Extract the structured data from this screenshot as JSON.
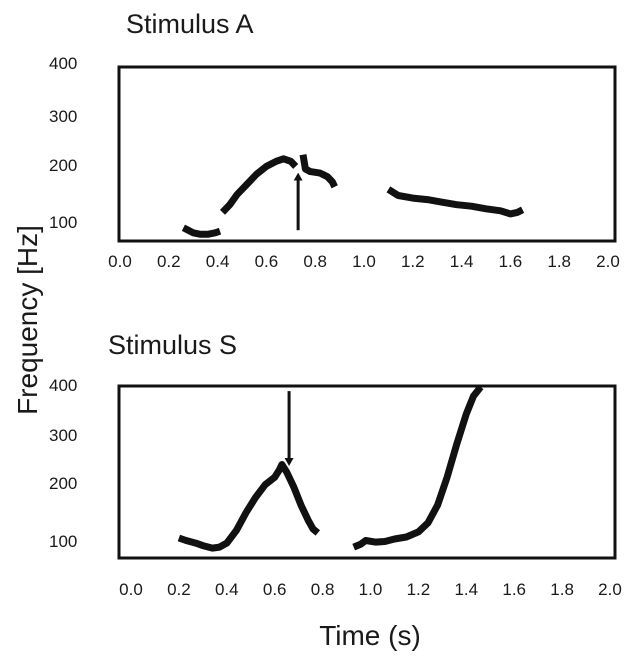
{
  "figure": {
    "ylabel": "Frequency [Hz]",
    "xlabel": "Time (s)"
  },
  "chart_data": [
    {
      "type": "line",
      "title": "Stimulus A",
      "xlabel": "Time (s)",
      "ylabel": "Frequency [Hz]",
      "xlim": [
        0.0,
        2.0
      ],
      "ylim": [
        55,
        400
      ],
      "xticks": [
        "0.0",
        "0.2",
        "0.4",
        "0.6",
        "0.8",
        "1.0",
        "1.2",
        "1.4",
        "1.6",
        "1.8",
        "2.0"
      ],
      "yticks": [
        "400",
        "300",
        "200",
        "100"
      ],
      "ytick_values": [
        400,
        300,
        200,
        100
      ],
      "grid": false,
      "series": [
        {
          "segments": [
            [
              [
                0.26,
                85
              ],
              [
                0.28,
                80
              ],
              [
                0.3,
                75
              ],
              [
                0.33,
                72
              ],
              [
                0.36,
                72
              ],
              [
                0.39,
                75
              ],
              [
                0.41,
                78
              ]
            ],
            [
              [
                0.42,
                115
              ],
              [
                0.45,
                130
              ],
              [
                0.48,
                150
              ],
              [
                0.52,
                170
              ],
              [
                0.56,
                190
              ],
              [
                0.6,
                205
              ],
              [
                0.64,
                215
              ],
              [
                0.67,
                220
              ],
              [
                0.7,
                215
              ],
              [
                0.72,
                205
              ]
            ],
            [
              [
                0.75,
                228
              ],
              [
                0.76,
                200
              ],
              [
                0.78,
                195
              ],
              [
                0.82,
                192
              ],
              [
                0.85,
                185
              ],
              [
                0.87,
                175
              ],
              [
                0.88,
                165
              ]
            ],
            [
              [
                1.1,
                160
              ],
              [
                1.14,
                148
              ],
              [
                1.2,
                143
              ],
              [
                1.26,
                140
              ],
              [
                1.32,
                135
              ],
              [
                1.38,
                130
              ],
              [
                1.44,
                127
              ],
              [
                1.5,
                122
              ],
              [
                1.56,
                118
              ],
              [
                1.6,
                112
              ],
              [
                1.63,
                115
              ],
              [
                1.65,
                120
              ]
            ]
          ]
        }
      ],
      "annotations": [
        {
          "type": "arrow",
          "direction": "up",
          "x": 0.73,
          "y_from": 80,
          "y_to": 185
        }
      ]
    },
    {
      "type": "line",
      "title": "Stimulus S",
      "xlabel": "Time (s)",
      "ylabel": "Frequency [Hz]",
      "xlim": [
        0.0,
        2.0
      ],
      "ylim": [
        60,
        400
      ],
      "xticks": [
        "0.0",
        "0.2",
        "0.4",
        "0.6",
        "0.8",
        "1.0",
        "1.2",
        "1.4",
        "1.6",
        "1.8",
        "2.0"
      ],
      "yticks": [
        "400",
        "300",
        "200",
        "100"
      ],
      "ytick_values": [
        400,
        300,
        200,
        100
      ],
      "grid": false,
      "series": [
        {
          "segments": [
            [
              [
                0.2,
                100
              ],
              [
                0.23,
                95
              ],
              [
                0.27,
                90
              ],
              [
                0.3,
                85
              ],
              [
                0.34,
                80
              ],
              [
                0.37,
                82
              ],
              [
                0.4,
                90
              ],
              [
                0.44,
                115
              ],
              [
                0.48,
                150
              ],
              [
                0.52,
                180
              ],
              [
                0.56,
                205
              ],
              [
                0.6,
                220
              ],
              [
                0.62,
                235
              ],
              [
                0.63,
                245
              ],
              [
                0.65,
                230
              ],
              [
                0.68,
                200
              ],
              [
                0.71,
                165
              ],
              [
                0.74,
                135
              ],
              [
                0.76,
                118
              ],
              [
                0.78,
                110
              ]
            ],
            [
              [
                0.93,
                82
              ],
              [
                0.96,
                88
              ],
              [
                0.98,
                95
              ],
              [
                1.02,
                92
              ],
              [
                1.06,
                93
              ],
              [
                1.1,
                98
              ],
              [
                1.15,
                102
              ],
              [
                1.2,
                112
              ],
              [
                1.24,
                130
              ],
              [
                1.28,
                165
              ],
              [
                1.32,
                220
              ],
              [
                1.36,
                285
              ],
              [
                1.4,
                345
              ],
              [
                1.43,
                380
              ],
              [
                1.46,
                398
              ]
            ]
          ]
        }
      ],
      "annotations": [
        {
          "type": "arrow",
          "direction": "down",
          "x": 0.66,
          "y_from": 390,
          "y_to": 250
        }
      ]
    }
  ]
}
